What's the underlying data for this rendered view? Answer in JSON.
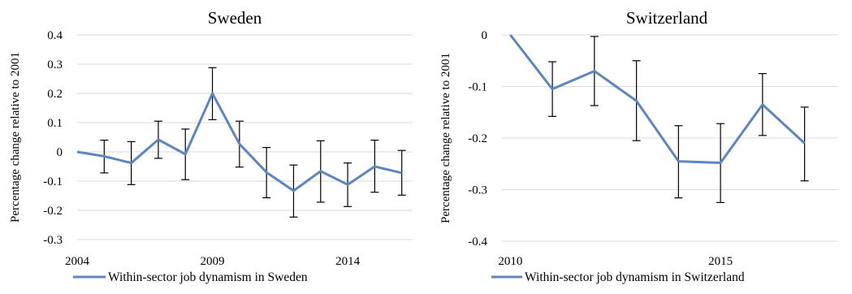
{
  "chart_data": [
    {
      "type": "line",
      "title": "Sweden",
      "xlabel": "",
      "ylabel": "Percentage change relative to 2001",
      "x": [
        2004,
        2005,
        2006,
        2007,
        2008,
        2009,
        2010,
        2011,
        2012,
        2013,
        2014,
        2015,
        2016
      ],
      "xlim": [
        2004,
        2016.4
      ],
      "xticks": [
        2004,
        2009,
        2014
      ],
      "ylim": [
        -0.3,
        0.4
      ],
      "yticks": [
        -0.3,
        -0.2,
        -0.1,
        0,
        0.1,
        0.2,
        0.3,
        0.4
      ],
      "ytick_labels": [
        "-0.3",
        "-0.2",
        "-0.1",
        "0",
        "0.1",
        "0.2",
        "0.3",
        "0.4"
      ],
      "grid": true,
      "legend_position": "bottom-left",
      "series": [
        {
          "name": "Within-sector job dynamism in Sweden",
          "color": "#5b87c1",
          "values": [
            0.0,
            -0.015,
            -0.038,
            0.042,
            -0.008,
            0.2,
            0.027,
            -0.07,
            -0.133,
            -0.066,
            -0.112,
            -0.05,
            -0.072
          ],
          "err_low": [
            0.0,
            -0.072,
            -0.112,
            -0.022,
            -0.095,
            0.11,
            -0.052,
            -0.157,
            -0.223,
            -0.172,
            -0.187,
            -0.138,
            -0.148
          ],
          "err_high": [
            0.0,
            0.04,
            0.035,
            0.105,
            0.078,
            0.288,
            0.105,
            0.015,
            -0.045,
            0.038,
            -0.038,
            0.04,
            0.005
          ]
        }
      ]
    },
    {
      "type": "line",
      "title": "Switzerland",
      "xlabel": "",
      "ylabel": "Percentage change relative to 2001",
      "x": [
        2010,
        2011,
        2012,
        2013,
        2014,
        2015,
        2016,
        2017
      ],
      "xlim": [
        2009.8,
        2017.8
      ],
      "xticks": [
        2010,
        2015
      ],
      "ylim": [
        -0.4,
        0
      ],
      "yticks": [
        -0.4,
        -0.3,
        -0.2,
        -0.1,
        0
      ],
      "ytick_labels": [
        "-0.4",
        "-0.3",
        "-0.2",
        "-0.1",
        "0"
      ],
      "grid": true,
      "legend_position": "bottom-left",
      "series": [
        {
          "name": "Within-sector job dynamism in Switzerland",
          "color": "#5b87c1",
          "values": [
            0.0,
            -0.105,
            -0.07,
            -0.128,
            -0.245,
            -0.248,
            -0.135,
            -0.21
          ],
          "err_low": [
            0.0,
            -0.158,
            -0.137,
            -0.205,
            -0.316,
            -0.325,
            -0.195,
            -0.283
          ],
          "err_high": [
            0.0,
            -0.052,
            -0.003,
            -0.05,
            -0.176,
            -0.172,
            -0.075,
            -0.14
          ]
        }
      ]
    }
  ]
}
